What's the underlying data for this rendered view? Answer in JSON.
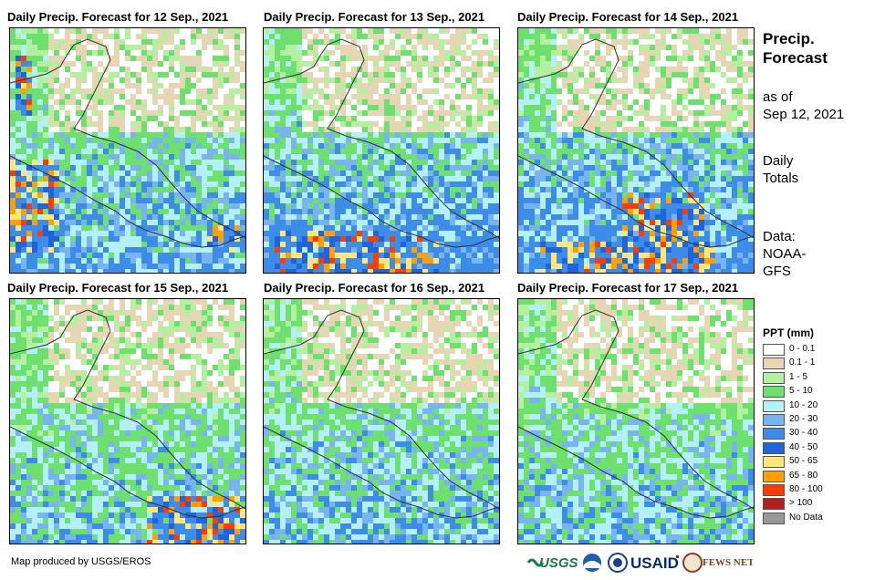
{
  "panels": [
    {
      "title": "Daily Precip. Forecast for 12 Sep., 2021"
    },
    {
      "title": "Daily Precip. Forecast for 13 Sep., 2021"
    },
    {
      "title": "Daily Precip. Forecast for 14 Sep., 2021"
    },
    {
      "title": "Daily Precip. Forecast for 15 Sep., 2021"
    },
    {
      "title": "Daily Precip. Forecast for 16 Sep., 2021"
    },
    {
      "title": "Daily Precip. Forecast for 17 Sep., 2021"
    }
  ],
  "side": {
    "title_line1": "Precip.",
    "title_line2": "Forecast",
    "asof_line1": "as of",
    "asof_line2": "Sep 12, 2021",
    "totals_line1": "Daily",
    "totals_line2": "Totals",
    "data_line1": "Data:",
    "data_line2": "NOAA-",
    "data_line3": "GFS"
  },
  "legend": {
    "title": "PPT (mm)",
    "items": [
      {
        "label": "0 - 0.1",
        "color": "#ffffff"
      },
      {
        "label": "0.1 - 1",
        "color": "#e6d6b4"
      },
      {
        "label": "1 - 5",
        "color": "#b4f0a0"
      },
      {
        "label": "5 - 10",
        "color": "#6ee06e"
      },
      {
        "label": "10 - 20",
        "color": "#b4f0f8"
      },
      {
        "label": "20 - 30",
        "color": "#78b4f0"
      },
      {
        "label": "30 - 40",
        "color": "#3c8ce8"
      },
      {
        "label": "40 - 50",
        "color": "#1e64dc"
      },
      {
        "label": "50 - 65",
        "color": "#ffe678"
      },
      {
        "label": "65 - 80",
        "color": "#ffa000"
      },
      {
        "label": "80 - 100",
        "color": "#ff3c00"
      },
      {
        "label": "> 100",
        "color": "#b41e1e"
      },
      {
        "label": "No Data",
        "color": "#999999"
      }
    ]
  },
  "credit": "Map produced by USGS/EROS",
  "logos": {
    "usgs": "USGS",
    "usaid": "USAID",
    "fewsnet": "FEWS NET"
  }
}
